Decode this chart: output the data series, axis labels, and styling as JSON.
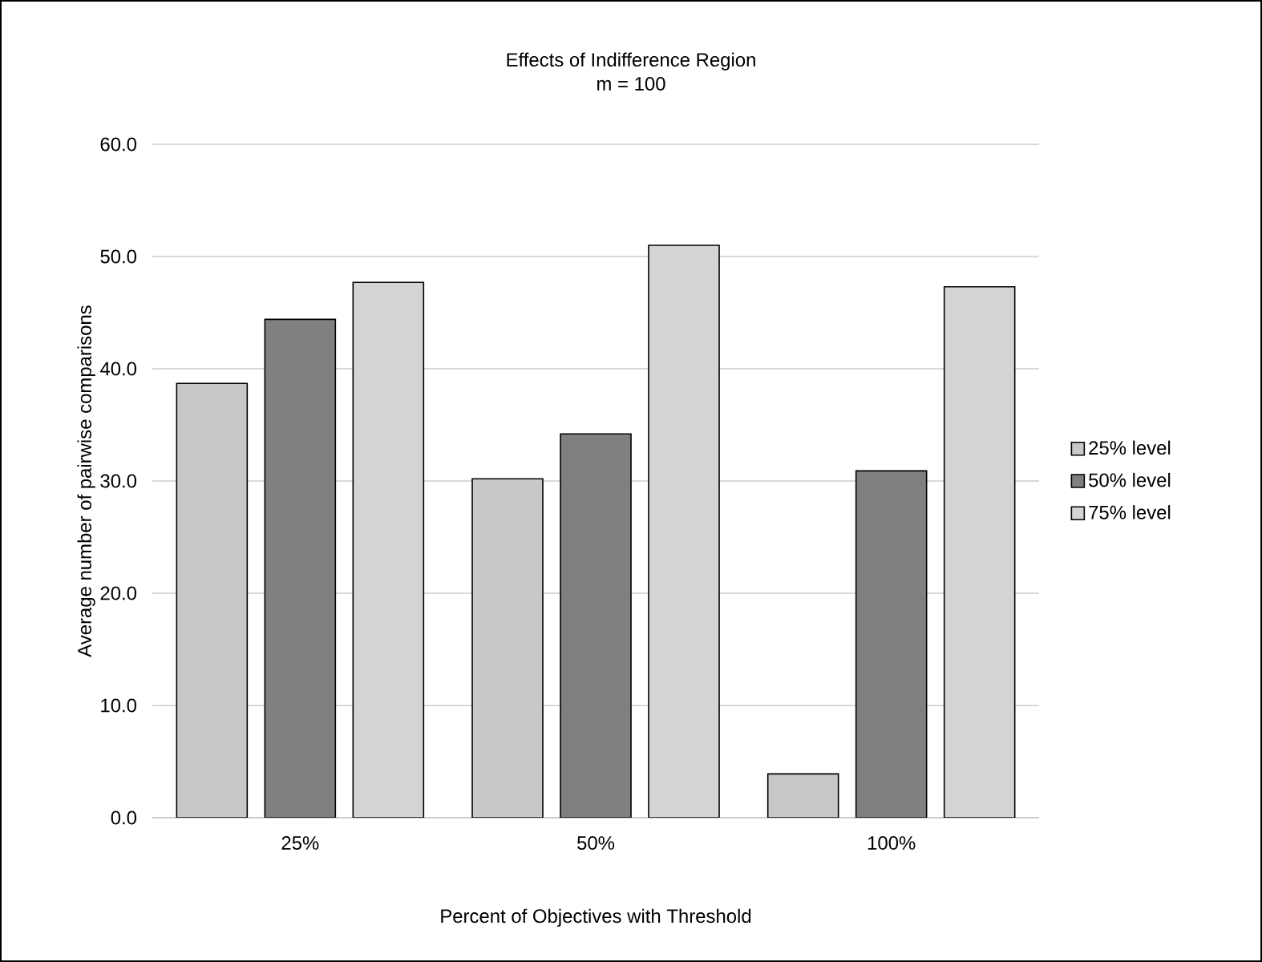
{
  "chart_data": {
    "type": "bar",
    "title": "Effects of Indifference Region",
    "subtitle": "m = 100",
    "xlabel": "Percent of Objectives with Threshold",
    "ylabel": "Average number of pairwise comparisons",
    "categories": [
      "25%",
      "50%",
      "100%"
    ],
    "series": [
      {
        "name": "25% level",
        "color": "#c8c8c8",
        "values": [
          38.7,
          30.2,
          3.9
        ]
      },
      {
        "name": "50% level",
        "color": "#808080",
        "values": [
          44.4,
          34.2,
          30.9
        ]
      },
      {
        "name": "75% level",
        "color": "#d4d4d4",
        "values": [
          47.7,
          51.0,
          47.3
        ]
      }
    ],
    "ylim": [
      0,
      60
    ],
    "yticks": [
      {
        "value": 0,
        "label": "0.0"
      },
      {
        "value": 10,
        "label": "10.0"
      },
      {
        "value": 20,
        "label": "20.0"
      },
      {
        "value": 30,
        "label": "30.0"
      },
      {
        "value": 40,
        "label": "40.0"
      },
      {
        "value": 50,
        "label": "50.0"
      },
      {
        "value": 60,
        "label": "60.0"
      }
    ],
    "grid": "y",
    "legend": "right"
  }
}
